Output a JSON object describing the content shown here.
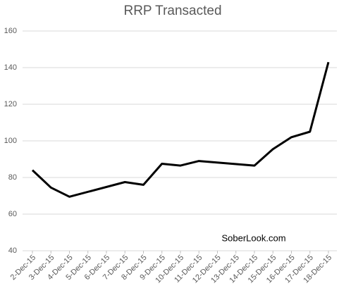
{
  "chart_data": {
    "type": "line",
    "title": "RRP Transacted",
    "x": [
      "2-Dec-15",
      "3-Dec-15",
      "4-Dec-15",
      "7-Dec-15",
      "8-Dec-15",
      "9-Dec-15",
      "10-Dec-15",
      "11-Dec-15",
      "14-Dec-15",
      "15-Dec-15",
      "16-Dec-15",
      "17-Dec-15",
      "18-Dec-15"
    ],
    "series": [
      {
        "name": "RRP Transacted",
        "color": "#000000",
        "values": [
          84,
          74.5,
          69.5,
          77.5,
          76,
          87.5,
          86.5,
          89,
          86.5,
          95.5,
          102,
          105,
          143
        ]
      }
    ],
    "xticks": [
      "2-Dec-15",
      "3-Dec-15",
      "4-Dec-15",
      "5-Dec-15",
      "6-Dec-15",
      "7-Dec-15",
      "8-Dec-15",
      "9-Dec-15",
      "10-Dec-15",
      "11-Dec-15",
      "12-Dec-15",
      "13-Dec-15",
      "14-Dec-15",
      "15-Dec-15",
      "16-Dec-15",
      "17-Dec-15",
      "18-Dec-15"
    ],
    "ylim": [
      40,
      160
    ],
    "yticks": [
      40,
      60,
      80,
      100,
      120,
      140,
      160
    ],
    "grid": true,
    "annotation": "SoberLook.com"
  }
}
